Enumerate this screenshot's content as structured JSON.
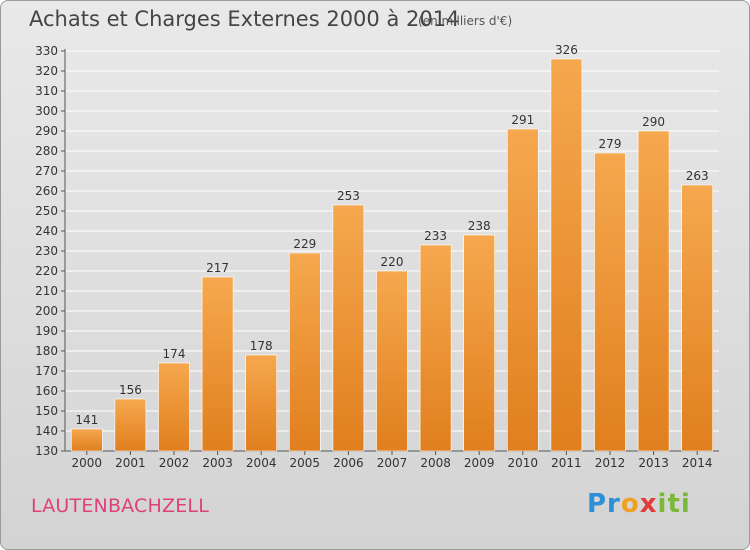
{
  "title": "Achats et Charges Externes 2000 à 2014",
  "unit_note": "(en milliers d'€)",
  "town": "LAUTENBACHZELL",
  "logo": {
    "p1": "Pr",
    "p2": "o",
    "p3": "x",
    "p4": "iti"
  },
  "colors": {
    "bar_top": "#f6a84e",
    "bar_bottom": "#e07f1e",
    "grid": "#ffffff",
    "town": "#e0407a"
  },
  "chart_data": {
    "type": "bar",
    "categories": [
      "2000",
      "2001",
      "2002",
      "2003",
      "2004",
      "2005",
      "2006",
      "2007",
      "2008",
      "2009",
      "2010",
      "2011",
      "2012",
      "2013",
      "2014"
    ],
    "values": [
      141,
      156,
      174,
      217,
      178,
      229,
      253,
      220,
      233,
      238,
      291,
      326,
      279,
      290,
      263
    ],
    "ylim": [
      130,
      330
    ],
    "ytick_step": 10,
    "grid": true,
    "data_labels": true
  }
}
